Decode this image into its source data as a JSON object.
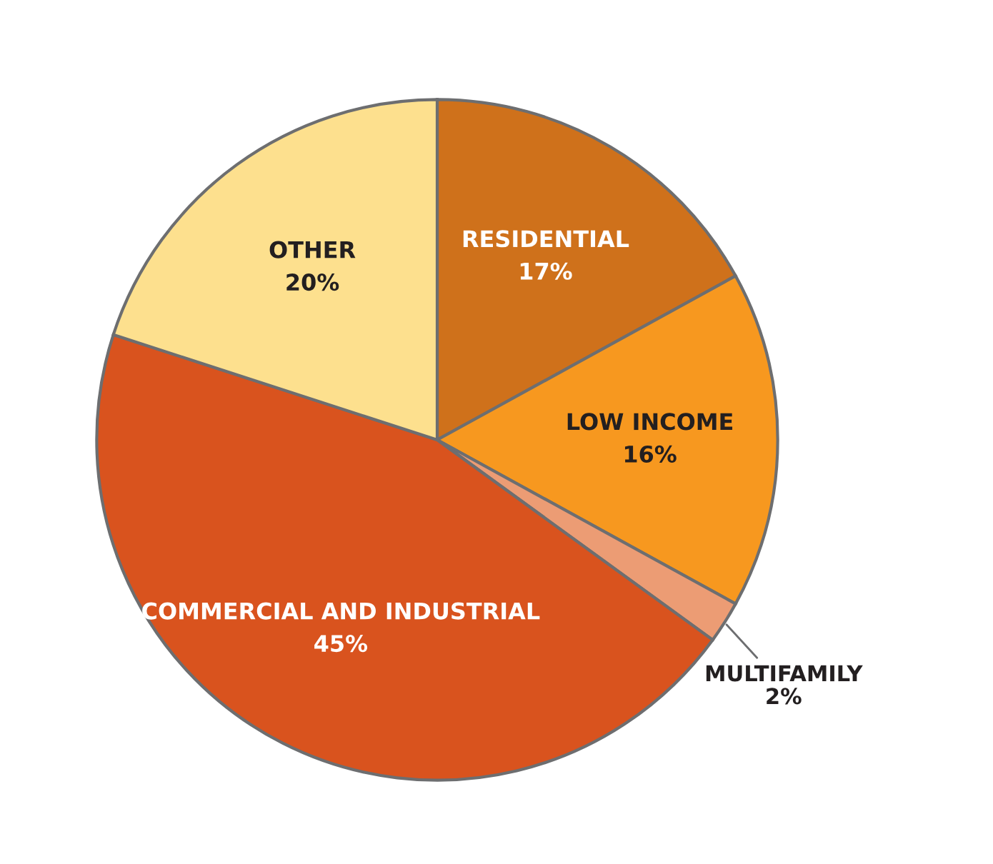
{
  "chart_data": {
    "type": "pie",
    "categories": [
      "RESIDENTIAL",
      "LOW INCOME",
      "MULTIFAMILY",
      "COMMERCIAL AND INDUSTRIAL",
      "OTHER"
    ],
    "values": [
      17,
      16,
      2,
      45,
      20
    ],
    "value_labels": [
      "17%",
      "16%",
      "2%",
      "45%",
      "20%"
    ],
    "colors": [
      "#cf711b",
      "#f7981f",
      "#ec9c74",
      "#d9531e",
      "#fde08e"
    ]
  }
}
